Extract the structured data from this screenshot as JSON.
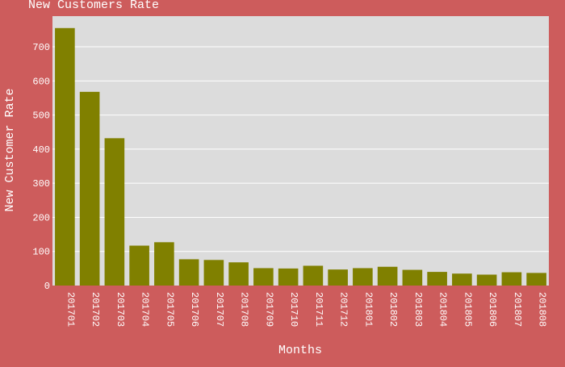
{
  "colors": {
    "paper_bg": "#cd5c5c",
    "plot_bg": "#dcdcdc",
    "grid": "#ffffff",
    "bar": "#808000",
    "text": "#ffffff"
  },
  "chart_data": {
    "type": "bar",
    "title": "New Customers Rate",
    "xlabel": "Months",
    "ylabel": "New Customer Rate",
    "ylim": [
      0,
      790
    ],
    "yticks": [
      0,
      100,
      200,
      300,
      400,
      500,
      600,
      700
    ],
    "grid": true,
    "categories": [
      "201701",
      "201702",
      "201703",
      "201704",
      "201705",
      "201706",
      "201707",
      "201708",
      "201709",
      "201710",
      "201711",
      "201712",
      "201801",
      "201802",
      "201803",
      "201804",
      "201805",
      "201806",
      "201807",
      "201808"
    ],
    "values": [
      755,
      568,
      432,
      117,
      127,
      77,
      75,
      68,
      51,
      50,
      58,
      47,
      51,
      55,
      46,
      40,
      35,
      32,
      39,
      37
    ]
  }
}
